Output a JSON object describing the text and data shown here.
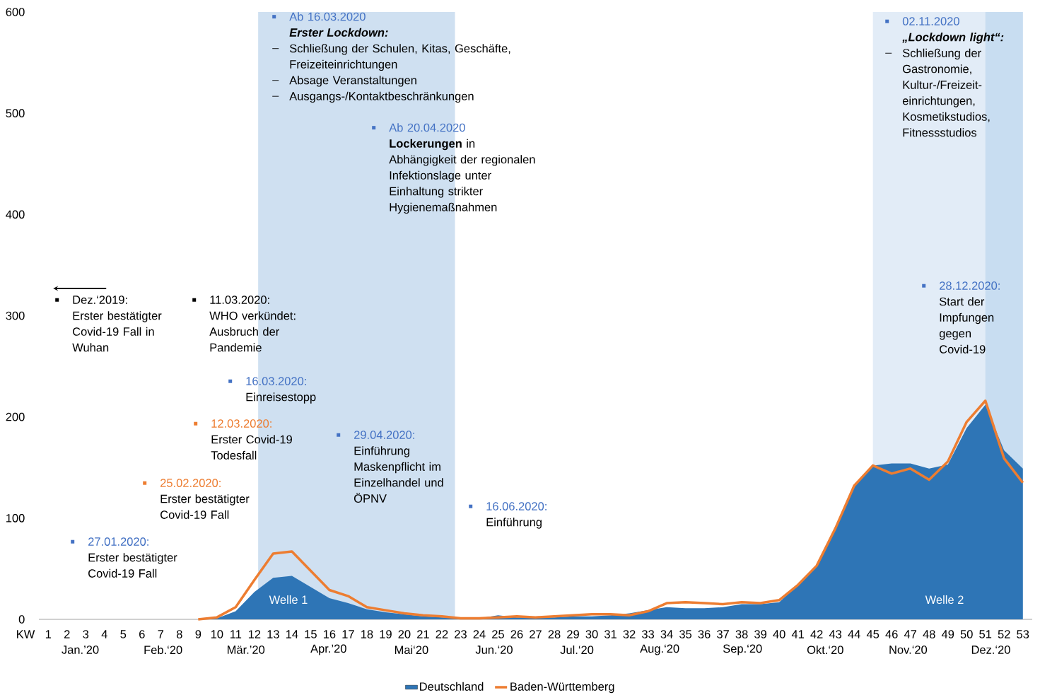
{
  "chart_data": {
    "type": "area",
    "xlabel": "KW",
    "legend": "bottom",
    "x": [
      9,
      10,
      11,
      12,
      13,
      14,
      15,
      16,
      17,
      18,
      19,
      20,
      21,
      22,
      23,
      24,
      25,
      26,
      27,
      28,
      29,
      30,
      31,
      32,
      33,
      34,
      35,
      36,
      37,
      38,
      39,
      40,
      41,
      42,
      43,
      44,
      45,
      46,
      47,
      48,
      49,
      50,
      51,
      52,
      53
    ],
    "xlim": [
      0.5,
      53.5
    ],
    "xticks": [
      1,
      2,
      3,
      4,
      5,
      6,
      7,
      8,
      9,
      10,
      11,
      12,
      13,
      14,
      15,
      16,
      17,
      18,
      19,
      20,
      21,
      22,
      23,
      24,
      25,
      26,
      27,
      28,
      29,
      30,
      31,
      32,
      33,
      34,
      35,
      36,
      37,
      38,
      39,
      40,
      41,
      42,
      43,
      44,
      45,
      46,
      47,
      48,
      49,
      50,
      51,
      52,
      53
    ],
    "ylim": [
      0,
      600
    ],
    "yticks": [
      0,
      100,
      200,
      300,
      400,
      500,
      600
    ],
    "series": [
      {
        "name": "Deutschland",
        "color": "#2e75b6",
        "values": [
          0,
          1,
          8,
          27,
          41,
          43,
          32,
          21,
          16,
          10,
          7,
          5,
          3,
          2,
          1,
          1,
          4,
          2,
          2,
          2,
          3,
          3,
          4,
          6,
          9,
          12,
          11,
          11,
          12,
          15,
          15,
          17,
          34,
          53,
          90,
          132,
          152,
          154,
          154,
          149,
          153,
          189,
          212,
          167,
          149
        ]
      },
      {
        "name": "Baden-Württemberg",
        "type": "line",
        "color": "#ed7d31",
        "values": [
          0,
          2,
          12,
          39,
          65,
          67,
          48,
          29,
          23,
          12,
          9,
          6,
          4,
          3,
          1,
          1,
          2,
          3,
          2,
          3,
          4,
          5,
          5,
          4,
          8,
          16,
          17,
          16,
          15,
          17,
          16,
          19,
          34,
          53,
          90,
          132,
          152,
          144,
          149,
          138,
          156,
          195,
          216,
          159,
          135
        ]
      }
    ],
    "bands": [
      {
        "axis": "x",
        "from": 12.2,
        "to": 22.7,
        "color": "#cfe0f1"
      },
      {
        "axis": "x",
        "from": 45,
        "to": 53,
        "color": "#e2ecf7"
      },
      {
        "axis": "x",
        "from": 51,
        "to": 53,
        "color": "#c8ddf1"
      }
    ],
    "annotations": [
      "Dez.‘2019:",
      "Erster bestätigter Covid-19 Fall in Wuhan",
      "11.03.2020:",
      "WHO verkündet: Ausbruch der Pandemie",
      "16.03.2020:",
      "Einreisestopp",
      "12.03.2020:",
      "Erster Covid-19 Todesfall",
      "25.02.2020:",
      "Erster bestätigter Covid-19 Fall",
      "27.01.2020:",
      "Erster bestätigter Covid-19 Fall",
      "29.04.2020:",
      "Einführung Maskenpflicht im Einzelhandel und ÖPNV",
      "16.06.2020:",
      "Einführung",
      "Ab 16.03.2020",
      "Erster Lockdown:",
      "Schließung der Schulen, Kitas, Geschäfte, Freizeiteinrichtungen",
      "Absage Veranstaltungen",
      "Ausgangs-/Kontaktbeschränkungen",
      "Ab 20.04.2020",
      "**Lockerungen** in Abhängigkeit der regionalen Infektionslage unter Einhaltung strikter Hygienemaßnahmen",
      "02.11.2020",
      "„Lockdown light“:",
      "Schließung der Gastronomie, Kultur-/Freizeit-einrichtungen, Kosmetikstudios, Fitnessstudios",
      "28.12.2020:",
      "Start der Impfungen gegen Covid-19",
      "Welle 1",
      "Welle 2",
      "Jan.’20",
      "Feb.‘20",
      "Mär.’20",
      "Apr.’20",
      "Mai‘20",
      "Jun.‘20",
      "Jul.‘20",
      "Aug.‘20",
      "Sep.‘20",
      "Okt.‘20",
      "Nov.‘20",
      "Dez.‘20"
    ]
  }
}
